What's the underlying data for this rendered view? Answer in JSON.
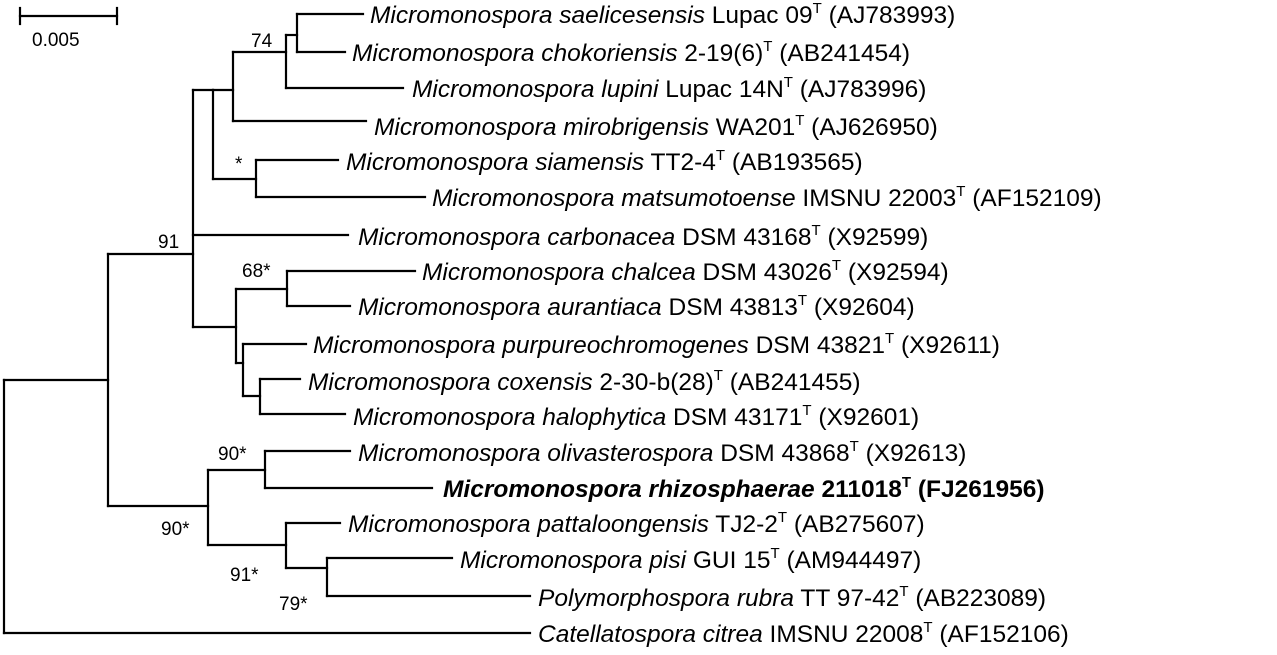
{
  "scale_bar": {
    "label": "0.005"
  },
  "leaves": [
    {
      "genus": "Micromonospora saelicesensis",
      "strain": "Lupac 09",
      "sup": "T",
      "accession": "(AJ783993)",
      "bold": false
    },
    {
      "genus": "Micromonospora chokoriensis",
      "strain": "2-19(6)",
      "sup": "T",
      "accession": "(AB241454)",
      "bold": false
    },
    {
      "genus": "Micromonospora lupini",
      "strain": "Lupac 14N",
      "sup": "T",
      "accession": "(AJ783996)",
      "bold": false
    },
    {
      "genus": "Micromonospora mirobrigensis",
      "strain": "WA201",
      "sup": "T",
      "accession": "(AJ626950)",
      "bold": false
    },
    {
      "genus": "Micromonospora siamensis",
      "strain": "TT2-4",
      "sup": "T",
      "accession": "(AB193565)",
      "bold": false
    },
    {
      "genus": "Micromonospora matsumotoense",
      "strain": "IMSNU 22003",
      "sup": "T",
      "accession": "(AF152109)",
      "bold": false
    },
    {
      "genus": "Micromonospora carbonacea",
      "strain": "DSM 43168",
      "sup": "T",
      "accession": "(X92599)",
      "bold": false
    },
    {
      "genus": "Micromonospora chalcea",
      "strain": "DSM 43026",
      "sup": "T",
      "accession": "(X92594)",
      "bold": false
    },
    {
      "genus": "Micromonospora aurantiaca",
      "strain": "DSM 43813",
      "sup": "T",
      "accession": "(X92604)",
      "bold": false
    },
    {
      "genus": "Micromonospora purpureochromogenes",
      "strain": "DSM 43821",
      "sup": "T",
      "accession": "(X92611)",
      "bold": false
    },
    {
      "genus": "Micromonospora coxensis",
      "strain": "2-30-b(28)",
      "sup": "T",
      "accession": "(AB241455)",
      "bold": false
    },
    {
      "genus": "Micromonospora halophytica",
      "strain": "DSM 43171",
      "sup": "T",
      "accession": "(X92601)",
      "bold": false
    },
    {
      "genus": "Micromonospora olivasterospora",
      "strain": "DSM 43868",
      "sup": "T",
      "accession": "(X92613)",
      "bold": false
    },
    {
      "genus": "Micromonospora rhizosphaerae",
      "strain": "211018",
      "sup": "T",
      "accession": "(FJ261956)",
      "bold": true
    },
    {
      "genus": "Micromonospora pattaloongensis",
      "strain": "TJ2-2",
      "sup": "T",
      "accession": "(AB275607)",
      "bold": false
    },
    {
      "genus": "Micromonospora pisi",
      "strain": "GUI 15",
      "sup": "T",
      "accession": "(AM944497)",
      "bold": false
    },
    {
      "genus": "Polymorphospora rubra",
      "strain": "TT 97-42",
      "sup": "T",
      "accession": "(AB223089)",
      "bold": false
    },
    {
      "genus": "Catellatospora citrea",
      "strain": "IMSNU 22008",
      "sup": "T",
      "accession": "(AF152106)",
      "bold": false
    }
  ],
  "bootstrap": {
    "n74": "74",
    "nSiam": "*",
    "n91": "91",
    "n68": "68*",
    "n90a": "90*",
    "n90b": "90*",
    "n91b": "91*",
    "n79": "79*"
  }
}
